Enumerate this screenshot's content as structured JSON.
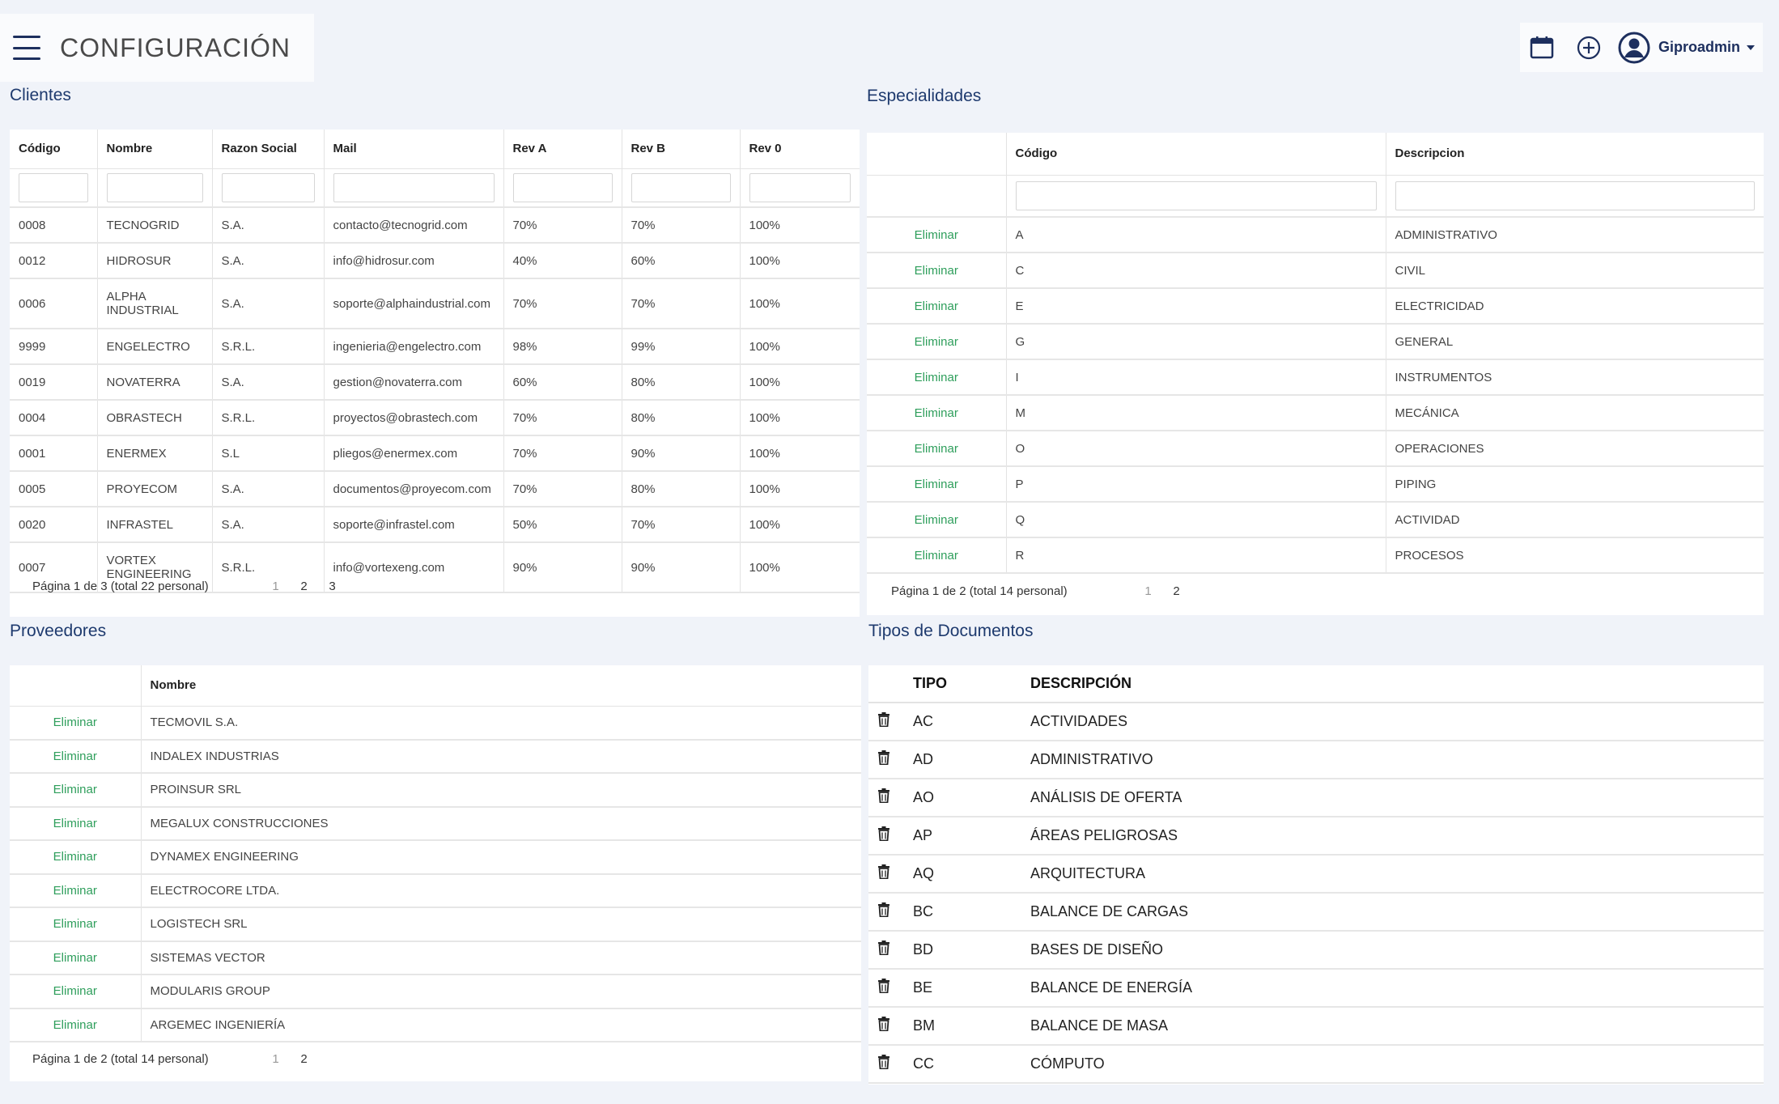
{
  "app": {
    "title": "CONFIGURACIÓN"
  },
  "user": {
    "name": "Giproadmin"
  },
  "icons": {
    "menu": "hamburger-icon",
    "calendar": "calendar-icon",
    "add": "plus-circle-icon",
    "user": "user-circle-icon",
    "delete": "trash-icon"
  },
  "colors": {
    "accent": "#1e3a6e",
    "delete_link": "#2e9e5b"
  },
  "clientes": {
    "title": "Clientes",
    "columns": [
      "Código",
      "Nombre",
      "Razon Social",
      "Mail",
      "Rev A",
      "Rev B",
      "Rev 0"
    ],
    "rows": [
      [
        "0008",
        "TECNOGRID",
        "S.A.",
        "contacto@tecnogrid.com",
        "70%",
        "70%",
        "100%"
      ],
      [
        "0012",
        "HIDROSUR",
        "S.A.",
        "info@hidrosur.com",
        "40%",
        "60%",
        "100%"
      ],
      [
        "0006",
        "ALPHA INDUSTRIAL",
        "S.A.",
        "soporte@alphaindustrial.com",
        "70%",
        "70%",
        "100%"
      ],
      [
        "9999",
        "ENGELECTRO",
        "S.R.L.",
        "ingenieria@engelectro.com",
        "98%",
        "99%",
        "100%"
      ],
      [
        "0019",
        "NOVATERRA",
        "S.A.",
        "gestion@novaterra.com",
        "60%",
        "80%",
        "100%"
      ],
      [
        "0004",
        "OBRASTECH",
        "S.R.L.",
        "proyectos@obrastech.com",
        "70%",
        "80%",
        "100%"
      ],
      [
        "0001",
        "ENERMEX",
        "S.L",
        "pliegos@enermex.com",
        "70%",
        "90%",
        "100%"
      ],
      [
        "0005",
        "PROYECOM",
        "S.A.",
        "documentos@proyecom.com",
        "70%",
        "80%",
        "100%"
      ],
      [
        "0020",
        "INFRASTEL",
        "S.A.",
        "soporte@infrastel.com",
        "50%",
        "70%",
        "100%"
      ],
      [
        "0007",
        "VORTEX ENGINEERING",
        "S.R.L.",
        "info@vortexeng.com",
        "90%",
        "90%",
        "100%"
      ]
    ],
    "pager": {
      "text": "Página 1 de 3 (total 22 personal)",
      "pages": [
        "1",
        "2",
        "3"
      ]
    }
  },
  "especialidades": {
    "title": "Especialidades",
    "columns": [
      "",
      "Código",
      "Descripcion"
    ],
    "delete_label": "Eliminar",
    "rows": [
      [
        "A",
        "ADMINISTRATIVO"
      ],
      [
        "C",
        "CIVIL"
      ],
      [
        "E",
        "ELECTRICIDAD"
      ],
      [
        "G",
        "GENERAL"
      ],
      [
        "I",
        "INSTRUMENTOS"
      ],
      [
        "M",
        "MECÁNICA"
      ],
      [
        "O",
        "OPERACIONES"
      ],
      [
        "P",
        "PIPING"
      ],
      [
        "Q",
        "ACTIVIDAD"
      ],
      [
        "R",
        "PROCESOS"
      ]
    ],
    "pager": {
      "text": "Página 1 de 2 (total 14 personal)",
      "pages": [
        "1",
        "2"
      ]
    }
  },
  "proveedores": {
    "title": "Proveedores",
    "columns": [
      "",
      "Nombre"
    ],
    "delete_label": "Eliminar",
    "rows": [
      "TECMOVIL S.A.",
      "INDALEX INDUSTRIAS",
      "PROINSUR SRL",
      "MEGALUX CONSTRUCCIONES",
      "DYNAMEX ENGINEERING",
      "ELECTROCORE LTDA.",
      "LOGISTECH SRL",
      "SISTEMAS VECTOR",
      "MODULARIS GROUP",
      "ARGEMEC INGENIERÍA"
    ],
    "pager": {
      "text": "Página 1 de 2 (total 14 personal)",
      "pages": [
        "1",
        "2"
      ]
    }
  },
  "tipos": {
    "title": "Tipos de Documentos",
    "columns": [
      "TIPO",
      "DESCRIPCIÓN"
    ],
    "rows": [
      [
        "AC",
        "ACTIVIDADES"
      ],
      [
        "AD",
        "ADMINISTRATIVO"
      ],
      [
        "AO",
        "ANÁLISIS DE OFERTA"
      ],
      [
        "AP",
        "ÁREAS PELIGROSAS"
      ],
      [
        "AQ",
        "ARQUITECTURA"
      ],
      [
        "BC",
        "BALANCE DE CARGAS"
      ],
      [
        "BD",
        "BASES DE DISEÑO"
      ],
      [
        "BE",
        "BALANCE DE ENERGÍA"
      ],
      [
        "BM",
        "BALANCE DE MASA"
      ],
      [
        "CC",
        "CÓMPUTO"
      ]
    ]
  }
}
